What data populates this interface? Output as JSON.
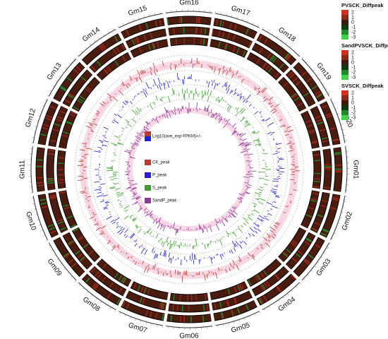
{
  "chart_data": {
    "type": "circos",
    "chromosomes": [
      "Gm16",
      "Gm17",
      "Gm18",
      "Gm19",
      "Gm20",
      "Gm01",
      "Gm02",
      "Gm03",
      "Gm04",
      "Gm05",
      "Gm06",
      "Gm07",
      "Gm08",
      "Gm09",
      "Gm10",
      "Gm11",
      "Gm12",
      "Gm13",
      "Gm14",
      "Gm15"
    ],
    "heatmap_legends": [
      {
        "title": "PVSCK_Diffpeak",
        "ticks": [
          2,
          1,
          0,
          -1,
          -2,
          -3
        ]
      },
      {
        "title": "SandPVSCK_Diffpeak",
        "ticks": [
          2,
          1,
          0,
          -1,
          -2,
          -3
        ]
      },
      {
        "title": "SVSCK_Diffpeak",
        "ticks": [
          2,
          1,
          0,
          -1,
          -2,
          -3
        ]
      }
    ],
    "track_legend_title": "Log10(ave_exp-FPKM)+/-",
    "tracks": [
      {
        "name": "CK_peak",
        "color": "#c0392b"
      },
      {
        "name": "P_peak",
        "color": "#1f1fe0"
      },
      {
        "name": "S_peak",
        "color": "#3aa02a"
      },
      {
        "name": "SandP_peak",
        "color": "#8e3a9a"
      }
    ]
  }
}
